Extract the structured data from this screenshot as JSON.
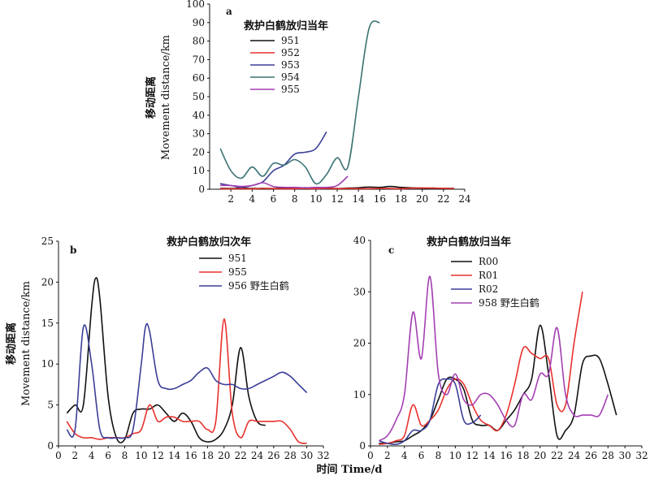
{
  "figure": {
    "x_axis_label": "时间 Time/d",
    "y_axis_label_cn": "移动距离",
    "y_axis_label_en": "Movement distance/km"
  },
  "chart_data": [
    {
      "panel": "a",
      "type": "line",
      "title": "救护白鹤放归当年",
      "xlim": [
        0,
        24
      ],
      "ylim": [
        0,
        100
      ],
      "xticks": [
        2,
        4,
        6,
        8,
        10,
        12,
        14,
        16,
        18,
        20,
        22,
        24
      ],
      "yticks": [
        0,
        10,
        20,
        30,
        40,
        50,
        60,
        70,
        80,
        90,
        100
      ],
      "legend": "top-left",
      "grid": false,
      "series": [
        {
          "name": "951",
          "color": "#111111",
          "x": [
            1,
            2,
            3,
            4,
            5,
            6,
            7,
            8,
            9,
            10,
            11,
            12,
            13,
            14,
            15,
            16,
            17,
            18,
            19,
            20,
            21,
            22,
            23
          ],
          "y": [
            0.5,
            0.4,
            0.6,
            0.4,
            0.5,
            0.4,
            0.6,
            0.5,
            0.8,
            0.5,
            0.6,
            0.4,
            0.6,
            0.8,
            1.2,
            1.0,
            1.5,
            1.0,
            0.8,
            0.6,
            0.6,
            0.5,
            0.5
          ]
        },
        {
          "name": "952",
          "color": "#e8312d",
          "x": [
            1,
            2,
            3,
            4,
            5,
            6,
            7,
            8,
            9,
            10,
            11,
            12,
            13,
            14,
            15,
            16,
            17,
            18,
            19,
            20,
            21,
            22,
            23
          ],
          "y": [
            0.3,
            0.2,
            0.3,
            0.2,
            0.4,
            0.3,
            0.2,
            0.3,
            0.4,
            0.3,
            0.5,
            0.3,
            0.4,
            0.3,
            0.3,
            0.5,
            0.4,
            0.3,
            0.6,
            0.7,
            0.6,
            0.5,
            0.4
          ]
        },
        {
          "name": "953",
          "color": "#3a3f96",
          "x": [
            1,
            2,
            3,
            4,
            5,
            6,
            7,
            8,
            9,
            10,
            11
          ],
          "y": [
            3,
            2,
            1,
            2,
            4,
            10,
            13,
            19,
            20,
            22,
            31
          ]
        },
        {
          "name": "954",
          "color": "#3b7373",
          "x": [
            1,
            2,
            3,
            4,
            5,
            6,
            7,
            8,
            9,
            10,
            11,
            12,
            13,
            14,
            15,
            16
          ],
          "y": [
            22,
            10,
            6,
            12,
            7,
            14,
            13,
            16,
            12,
            3,
            8,
            17,
            12,
            50,
            87,
            90
          ]
        },
        {
          "name": "955",
          "color": "#a33fb2",
          "x": [
            1,
            2,
            3,
            4,
            5,
            6,
            7,
            8,
            9,
            10,
            11,
            12,
            13
          ],
          "y": [
            2,
            2,
            1.5,
            2,
            3.5,
            1.5,
            1,
            1,
            0.8,
            1,
            1,
            2,
            7
          ]
        }
      ]
    },
    {
      "panel": "b",
      "type": "line",
      "title": "救护白鹤放归次年",
      "xlim": [
        0,
        32
      ],
      "ylim": [
        0,
        25
      ],
      "xticks": [
        0,
        2,
        4,
        6,
        8,
        10,
        12,
        14,
        16,
        18,
        20,
        22,
        24,
        26,
        28,
        30,
        32
      ],
      "yticks": [
        0,
        5,
        10,
        15,
        20,
        25
      ],
      "legend": "top-center",
      "grid": false,
      "series": [
        {
          "name": "951",
          "color": "#111111",
          "x": [
            1,
            2,
            3,
            4,
            4.5,
            5,
            6,
            7,
            8,
            9,
            10,
            11,
            12,
            13,
            14,
            15,
            16,
            17,
            18,
            19,
            20,
            21,
            22,
            23,
            24,
            25
          ],
          "y": [
            4,
            5,
            5,
            17,
            20.5,
            18,
            6,
            1,
            0.8,
            4,
            4.5,
            4.5,
            5,
            4,
            3,
            4,
            3,
            1,
            0.5,
            0.8,
            2,
            5,
            12,
            6,
            3,
            2.5
          ]
        },
        {
          "name": "955",
          "color": "#e8312d",
          "x": [
            1,
            2,
            3,
            4,
            5,
            6,
            7,
            8,
            9,
            10,
            11,
            12,
            13,
            14,
            15,
            16,
            17,
            18,
            19,
            20,
            21,
            22,
            23,
            24,
            25,
            26,
            27,
            28,
            29,
            30
          ],
          "y": [
            3,
            1.5,
            1,
            1,
            0.8,
            1,
            1,
            1,
            1.5,
            2,
            5,
            3,
            3.5,
            3.5,
            3,
            3,
            3,
            2,
            3,
            15.5,
            4,
            1,
            3,
            3,
            3,
            3,
            3,
            2,
            0.5,
            0.3
          ]
        },
        {
          "name": "956 野生白鹤",
          "color": "#3a3f96",
          "x": [
            1,
            2,
            3,
            4,
            5,
            6,
            7,
            8,
            9,
            10,
            10.5,
            11,
            12,
            13,
            14,
            15,
            16,
            17,
            18,
            19,
            20,
            21,
            22,
            23,
            24,
            25,
            26,
            27,
            28,
            29,
            30
          ],
          "y": [
            2,
            2,
            14.5,
            10,
            2,
            1,
            1,
            1,
            2,
            10,
            14.5,
            14,
            8,
            7,
            7,
            7.5,
            8,
            9,
            9.5,
            8,
            7.5,
            7.5,
            7,
            7,
            7.5,
            8,
            8.5,
            9,
            8.5,
            7.5,
            6.5
          ]
        }
      ]
    },
    {
      "panel": "c",
      "type": "line",
      "title": "救护白鹤放归当年",
      "xlim": [
        0,
        32
      ],
      "ylim": [
        0,
        40
      ],
      "xticks": [
        0,
        2,
        4,
        6,
        8,
        10,
        12,
        14,
        16,
        18,
        20,
        22,
        24,
        26,
        28,
        30,
        32
      ],
      "yticks": [
        0,
        10,
        20,
        30,
        40
      ],
      "legend": "top-center",
      "grid": false,
      "series": [
        {
          "name": "R00",
          "color": "#111111",
          "x": [
            1,
            2,
            3,
            4,
            5,
            6,
            7,
            8,
            9,
            10,
            11,
            12,
            13,
            14,
            15,
            16,
            17,
            18,
            19,
            20,
            21,
            22,
            23,
            24,
            25,
            26,
            27,
            28,
            29
          ],
          "y": [
            0.5,
            0.5,
            0.8,
            1,
            2,
            3,
            5,
            9,
            13,
            13,
            11,
            5,
            4,
            4,
            3,
            5,
            7,
            10,
            13,
            23.5,
            14,
            2,
            3,
            6,
            16,
            17.5,
            17,
            12,
            6
          ]
        },
        {
          "name": "R01",
          "color": "#e8312d",
          "x": [
            1,
            2,
            3,
            4,
            5,
            6,
            7,
            8,
            9,
            10,
            11,
            12,
            13,
            14,
            15,
            16,
            17,
            18,
            19,
            20,
            21,
            22,
            23,
            24,
            25
          ],
          "y": [
            0.3,
            0.5,
            1,
            2,
            8,
            4,
            5,
            7,
            11,
            13,
            12,
            8,
            5,
            4,
            3,
            6,
            12,
            19,
            18,
            17,
            17,
            8,
            8,
            20,
            30
          ]
        },
        {
          "name": "R02",
          "color": "#3a3f96",
          "x": [
            1,
            2,
            3,
            4,
            5,
            6,
            7,
            8,
            9,
            10,
            11,
            12,
            13
          ],
          "y": [
            1,
            0.5,
            0.3,
            1,
            3,
            3,
            5,
            12,
            13,
            12,
            5,
            4.5,
            6
          ]
        },
        {
          "name": "958 野生白鹤",
          "color": "#a33fb2",
          "x": [
            1,
            2,
            3,
            4,
            5,
            6,
            7,
            8,
            9,
            10,
            11,
            12,
            13,
            14,
            15,
            16,
            17,
            18,
            19,
            20,
            21,
            22,
            23,
            24,
            25,
            26,
            27,
            28
          ],
          "y": [
            1,
            2,
            5,
            10,
            26,
            17,
            33,
            14,
            10,
            14,
            9,
            8,
            10,
            10,
            8,
            5,
            4,
            10,
            9,
            14,
            14,
            23,
            10,
            6,
            6,
            6,
            6,
            10
          ]
        }
      ]
    }
  ]
}
